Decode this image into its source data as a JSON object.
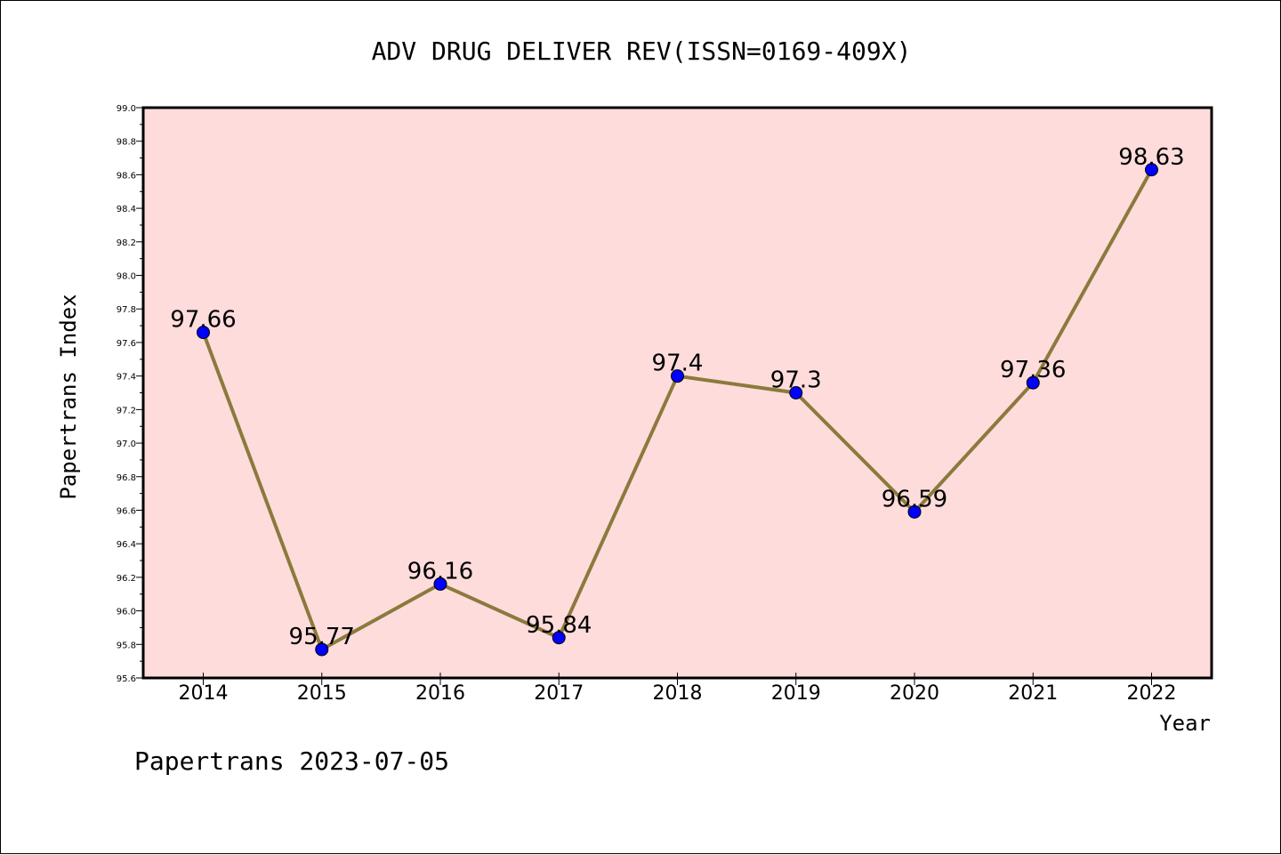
{
  "chart_data": {
    "type": "line",
    "title": "ADV DRUG DELIVER REV(ISSN=0169-409X)",
    "xlabel": "Year",
    "ylabel": "Papertrans Index",
    "categories": [
      "2014",
      "2015",
      "2016",
      "2017",
      "2018",
      "2019",
      "2020",
      "2021",
      "2022"
    ],
    "values": [
      97.66,
      95.77,
      96.16,
      95.84,
      97.4,
      97.3,
      96.59,
      97.36,
      98.63
    ],
    "data_labels": [
      "97.66",
      "95.77",
      "96.16",
      "95.84",
      "97.4",
      "97.3",
      "96.59",
      "97.36",
      "98.63"
    ],
    "ylim": [
      95.6,
      99.0
    ],
    "y_ticks": [
      "95.6",
      "95.8",
      "96.0",
      "96.2",
      "96.4",
      "96.6",
      "96.8",
      "97.0",
      "97.2",
      "97.4",
      "97.6",
      "97.8",
      "98.0",
      "98.2",
      "98.4",
      "98.6",
      "98.8",
      "99.0"
    ],
    "grid": false,
    "colors": {
      "plot_background": "#ffdcdc",
      "line": "#8b7a3c",
      "marker": "#0000ff"
    }
  },
  "footer": "Papertrans 2023-07-05"
}
